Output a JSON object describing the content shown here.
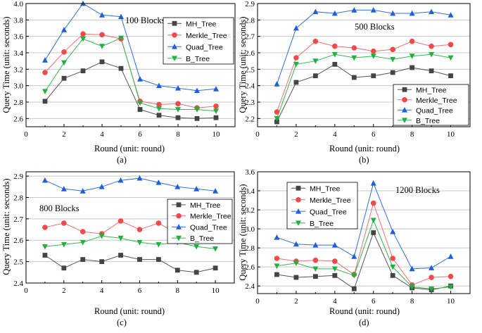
{
  "chart_data": [
    {
      "type": "line",
      "caption": "(a)",
      "annotation": "100 Blocks",
      "xlabel": "Round (unit: round)",
      "ylabel": "Query Time (unit: seconds)",
      "xlim": [
        0,
        11
      ],
      "ylim": [
        2.5,
        4.0
      ],
      "xticks": [
        0,
        2,
        4,
        6,
        8,
        10
      ],
      "yticks": [
        2.6,
        2.8,
        3.0,
        3.2,
        3.4,
        3.6,
        3.8,
        4.0
      ],
      "ytick_labels": [
        "2.6",
        "2.8",
        "3.0",
        "3.2",
        "3.4",
        "3.6",
        "3.8",
        "4.0"
      ],
      "grid": "horizontal",
      "legend_position": "top-right",
      "x": [
        1,
        2,
        3,
        4,
        5,
        6,
        7,
        8,
        9,
        10
      ],
      "series": [
        {
          "name": "MH_Tree",
          "values": [
            2.81,
            3.09,
            3.18,
            3.29,
            3.21,
            2.71,
            2.64,
            2.61,
            2.6,
            2.61
          ]
        },
        {
          "name": "Merkle_Tree",
          "values": [
            3.16,
            3.41,
            3.63,
            3.62,
            3.57,
            2.81,
            2.77,
            2.78,
            2.73,
            2.75
          ]
        },
        {
          "name": "Quad_Tree",
          "values": [
            3.31,
            3.68,
            4.0,
            3.86,
            3.84,
            3.08,
            3.0,
            2.97,
            2.94,
            2.96
          ]
        },
        {
          "name": "B_Tree",
          "values": [
            2.93,
            3.28,
            3.57,
            3.48,
            3.58,
            2.79,
            2.72,
            2.71,
            2.71,
            2.69
          ]
        }
      ]
    },
    {
      "type": "line",
      "caption": "(b)",
      "annotation": "500 Blocks",
      "xlabel": "Round (unit: round)",
      "ylabel": "Query Time (unit: seconds)",
      "xlim": [
        0,
        11
      ],
      "ylim": [
        2.15,
        2.9
      ],
      "xticks": [
        0,
        2,
        4,
        6,
        8,
        10
      ],
      "yticks": [
        2.2,
        2.3,
        2.4,
        2.5,
        2.6,
        2.7,
        2.8,
        2.9
      ],
      "ytick_labels": [
        "2.2",
        "2.3",
        "2.4",
        "2.5",
        "2.6",
        "2.7",
        "2.8",
        "2.9"
      ],
      "grid": "horizontal",
      "legend_position": "bottom-right",
      "x": [
        1,
        2,
        3,
        4,
        5,
        6,
        7,
        8,
        9,
        10
      ],
      "series": [
        {
          "name": "MH_Tree",
          "values": [
            2.18,
            2.42,
            2.46,
            2.53,
            2.45,
            2.46,
            2.48,
            2.51,
            2.49,
            2.46
          ]
        },
        {
          "name": "Merkle_Tree",
          "values": [
            2.24,
            2.57,
            2.67,
            2.64,
            2.63,
            2.61,
            2.62,
            2.67,
            2.64,
            2.65
          ]
        },
        {
          "name": "Quad_Tree",
          "values": [
            2.41,
            2.75,
            2.85,
            2.84,
            2.86,
            2.86,
            2.84,
            2.84,
            2.85,
            2.83
          ]
        },
        {
          "name": "B_Tree",
          "values": [
            2.2,
            2.53,
            2.55,
            2.59,
            2.57,
            2.58,
            2.56,
            2.58,
            2.59,
            2.57
          ]
        }
      ]
    },
    {
      "type": "line",
      "caption": "(c)",
      "annotation": "800 Blocks",
      "xlabel": "Round (unit: round)",
      "ylabel": "Query Time (unit: seconds)",
      "xlim": [
        0,
        11
      ],
      "ylim": [
        2.4,
        2.92
      ],
      "xticks": [
        0,
        2,
        4,
        6,
        8,
        10
      ],
      "yticks": [
        2.4,
        2.5,
        2.6,
        2.7,
        2.8,
        2.9
      ],
      "ytick_labels": [
        "2.4",
        "2.5",
        "2.6",
        "2.7",
        "2.8",
        "2.9"
      ],
      "grid": "horizontal",
      "legend_position": "right",
      "x": [
        1,
        2,
        3,
        4,
        5,
        6,
        7,
        8,
        9,
        10
      ],
      "series": [
        {
          "name": "MH_Tree",
          "values": [
            2.53,
            2.47,
            2.51,
            2.5,
            2.53,
            2.51,
            2.51,
            2.46,
            2.45,
            2.47
          ]
        },
        {
          "name": "Merkle_Tree",
          "values": [
            2.66,
            2.68,
            2.64,
            2.63,
            2.69,
            2.65,
            2.68,
            2.63,
            2.64,
            2.63
          ]
        },
        {
          "name": "Quad_Tree",
          "values": [
            2.88,
            2.84,
            2.83,
            2.85,
            2.88,
            2.89,
            2.87,
            2.85,
            2.84,
            2.83
          ]
        },
        {
          "name": "B_Tree",
          "values": [
            2.57,
            2.58,
            2.59,
            2.62,
            2.61,
            2.59,
            2.58,
            2.59,
            2.57,
            2.56
          ]
        }
      ]
    },
    {
      "type": "line",
      "caption": "(d)",
      "annotation": "1200 Blocks",
      "xlabel": "Round (unit: round)",
      "ylabel": "Query Time (unit: seconds)",
      "xlim": [
        0,
        11
      ],
      "ylim": [
        2.32,
        3.6
      ],
      "xticks": [
        0,
        2,
        4,
        6,
        8,
        10
      ],
      "yticks": [
        2.4,
        2.6,
        2.8,
        3.0,
        3.2,
        3.4,
        3.6
      ],
      "ytick_labels": [
        "2.4",
        "2.6",
        "2.8",
        "3.0",
        "3.2",
        "3.4",
        "3.6"
      ],
      "grid": "horizontal",
      "legend_position": "top-left",
      "x": [
        1,
        2,
        3,
        4,
        5,
        6,
        7,
        8,
        9,
        10
      ],
      "series": [
        {
          "name": "MH_Tree",
          "values": [
            2.52,
            2.49,
            2.5,
            2.51,
            2.37,
            2.96,
            2.51,
            2.38,
            2.36,
            2.4
          ]
        },
        {
          "name": "Merkle_Tree",
          "values": [
            2.69,
            2.66,
            2.67,
            2.66,
            2.52,
            3.27,
            2.69,
            2.41,
            2.49,
            2.5
          ]
        },
        {
          "name": "Quad_Tree",
          "values": [
            2.91,
            2.84,
            2.83,
            2.83,
            2.71,
            3.48,
            2.97,
            2.58,
            2.59,
            2.71
          ]
        },
        {
          "name": "B_Tree",
          "values": [
            2.61,
            2.64,
            2.58,
            2.58,
            2.51,
            3.09,
            2.6,
            2.39,
            2.37,
            2.39
          ]
        }
      ]
    }
  ],
  "style": {
    "series_colors": [
      "#555555",
      "#f07070",
      "#2f6fe0",
      "#33b84d"
    ],
    "marker_colors": [
      "#444444",
      "#f24a4a",
      "#1f5fd8",
      "#22b040"
    ],
    "markers": [
      "square-marker",
      "circle-marker",
      "triangle-up-marker",
      "triangle-down-marker"
    ],
    "grid_color": "#c8c8c8"
  }
}
